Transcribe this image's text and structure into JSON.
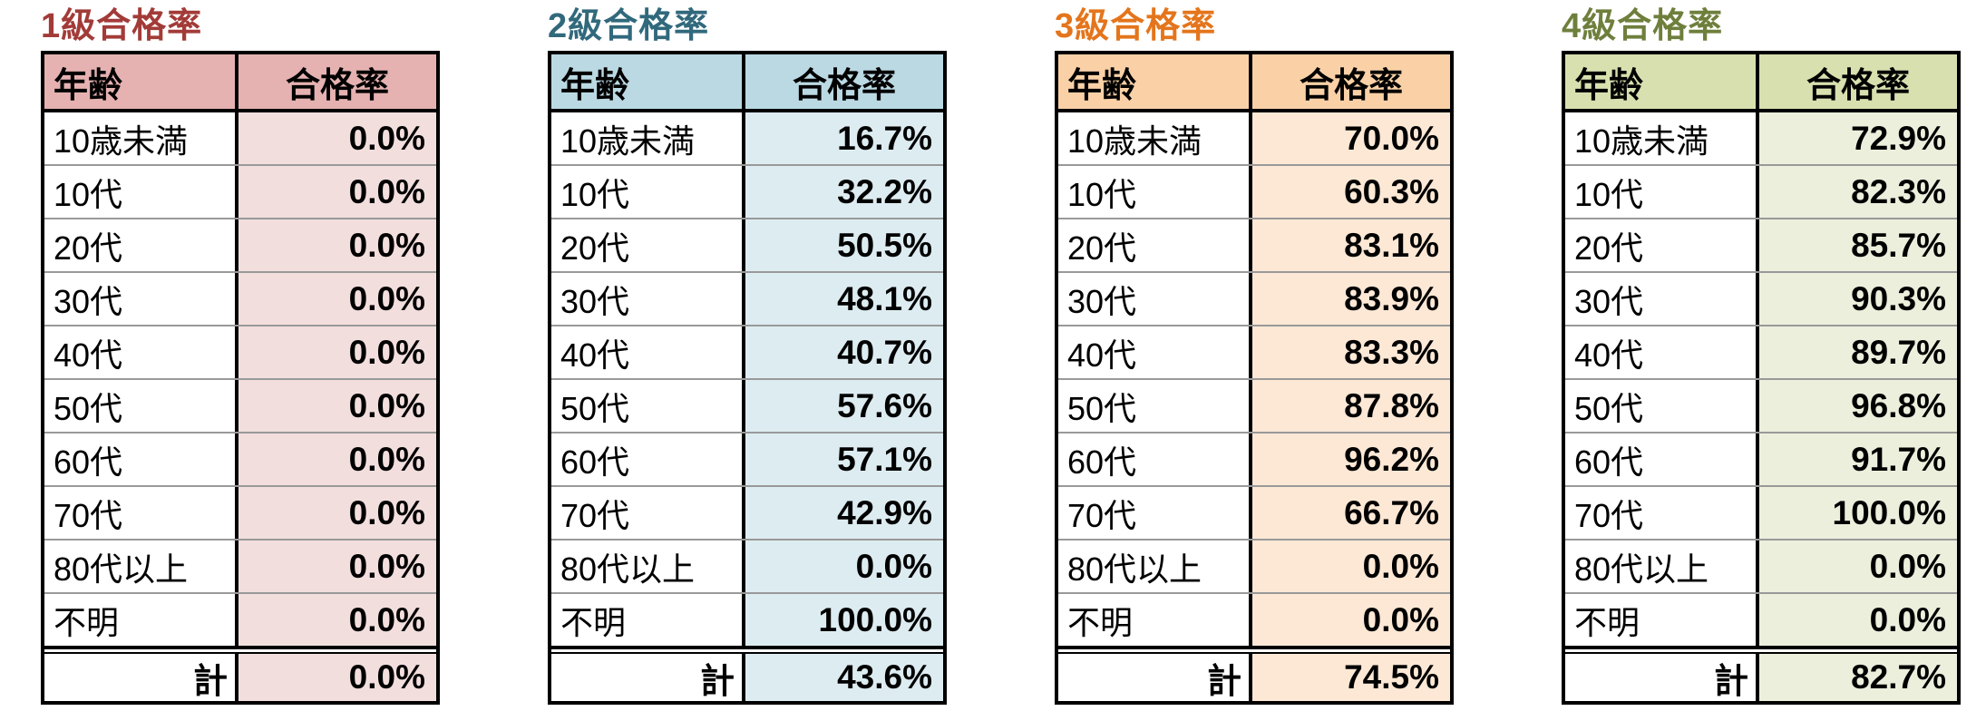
{
  "chart_data": [
    {
      "type": "table",
      "title": "1級合格率",
      "columns": [
        "年齢",
        "合格率"
      ],
      "categories": [
        "10歳未満",
        "10代",
        "20代",
        "30代",
        "40代",
        "50代",
        "60代",
        "70代",
        "80代以上",
        "不明"
      ],
      "values": [
        "0.0%",
        "0.0%",
        "0.0%",
        "0.0%",
        "0.0%",
        "0.0%",
        "0.0%",
        "0.0%",
        "0.0%",
        "0.0%"
      ],
      "total_label": "計",
      "total_value": "0.0%",
      "colors": {
        "title": "#A23B38",
        "header_bg": "#E5B2B1",
        "cell_bg": "#F2DEDD"
      }
    },
    {
      "type": "table",
      "title": "2級合格率",
      "columns": [
        "年齢",
        "合格率"
      ],
      "categories": [
        "10歳未満",
        "10代",
        "20代",
        "30代",
        "40代",
        "50代",
        "60代",
        "70代",
        "80代以上",
        "不明"
      ],
      "values": [
        "16.7%",
        "32.2%",
        "50.5%",
        "48.1%",
        "40.7%",
        "57.6%",
        "57.1%",
        "42.9%",
        "0.0%",
        "100.0%"
      ],
      "total_label": "計",
      "total_value": "43.6%",
      "colors": {
        "title": "#31697C",
        "header_bg": "#BBD9E3",
        "cell_bg": "#DDECF1"
      }
    },
    {
      "type": "table",
      "title": "3級合格率",
      "columns": [
        "年齢",
        "合格率"
      ],
      "categories": [
        "10歳未満",
        "10代",
        "20代",
        "30代",
        "40代",
        "50代",
        "60代",
        "70代",
        "80代以上",
        "不明"
      ],
      "values": [
        "70.0%",
        "60.3%",
        "83.1%",
        "83.9%",
        "83.3%",
        "87.8%",
        "96.2%",
        "66.7%",
        "0.0%",
        "0.0%"
      ],
      "total_label": "計",
      "total_value": "74.5%",
      "colors": {
        "title": "#E4751C",
        "header_bg": "#FAD1A7",
        "cell_bg": "#FCE8D5"
      }
    },
    {
      "type": "table",
      "title": "4級合格率",
      "columns": [
        "年齢",
        "合格率"
      ],
      "categories": [
        "10歳未満",
        "10代",
        "20代",
        "30代",
        "40代",
        "50代",
        "60代",
        "70代",
        "80代以上",
        "不明"
      ],
      "values": [
        "72.9%",
        "82.3%",
        "85.7%",
        "90.3%",
        "89.7%",
        "96.8%",
        "91.7%",
        "100.0%",
        "0.0%",
        "0.0%"
      ],
      "total_label": "計",
      "total_value": "82.7%",
      "colors": {
        "title": "#6E7F3C",
        "header_bg": "#D8E0AF",
        "cell_bg": "#EBEFDC"
      }
    }
  ]
}
